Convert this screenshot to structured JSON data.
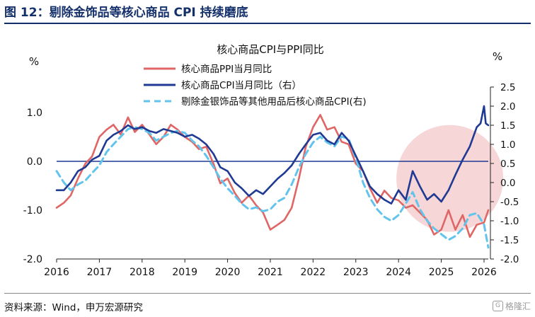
{
  "figure_title": "图 12：剔除金饰品等核心商品 CPI 持续磨底",
  "source_note": "资料来源：Wind，申万宏源研究",
  "watermark": "格隆汇",
  "colors": {
    "ppi": "#e06666",
    "cpi": "#1f3a93",
    "cpi_ex_gold": "#62c4ec",
    "highlight": "#f3c8c8",
    "title": "#14306b"
  },
  "chart_data": {
    "type": "line",
    "title": "核心商品CPI与PPI同比",
    "left_axis": {
      "unit_label": "%",
      "range": [
        -2.0,
        1.6
      ],
      "ticks": [
        "1.0",
        "0.0",
        "-1.0",
        "-2.0"
      ],
      "tick_values": [
        1.0,
        0.0,
        -1.0,
        -2.0
      ]
    },
    "right_axis": {
      "unit_label": "%",
      "range": [
        -2.0,
        2.5
      ],
      "ticks": [
        "2.5",
        "2.0",
        "1.5",
        "1.0",
        "0.5",
        "0.0",
        "-0.5",
        "-1.0",
        "-1.5",
        "-2.0"
      ],
      "tick_values": [
        2.5,
        2.0,
        1.5,
        1.0,
        0.5,
        0.0,
        -0.5,
        -1.0,
        -1.5,
        -2.0
      ]
    },
    "x_range": [
      2016.0,
      2026.1
    ],
    "x_ticks": [
      "2016",
      "2017",
      "2018",
      "2019",
      "2020",
      "2021",
      "2022",
      "2023",
      "2024",
      "2025",
      "2026"
    ],
    "x_tick_values": [
      2016,
      2017,
      2018,
      2019,
      2020,
      2021,
      2022,
      2023,
      2024,
      2025,
      2026
    ],
    "highlight": {
      "shape": "circle",
      "center": [
        2025.2,
        -0.35
      ],
      "radius_years": 1.25,
      "note": "shaded area over 2024-2026"
    },
    "series": [
      {
        "name": "核心商品PPI当月同比",
        "axis": "left",
        "style": "solid",
        "points": [
          [
            2016.0,
            -0.95
          ],
          [
            2016.17,
            -0.85
          ],
          [
            2016.33,
            -0.7
          ],
          [
            2016.5,
            -0.35
          ],
          [
            2016.67,
            -0.05
          ],
          [
            2016.83,
            0.1
          ],
          [
            2017.0,
            0.5
          ],
          [
            2017.17,
            0.65
          ],
          [
            2017.33,
            0.75
          ],
          [
            2017.5,
            0.55
          ],
          [
            2017.67,
            0.9
          ],
          [
            2017.83,
            0.6
          ],
          [
            2018.0,
            0.75
          ],
          [
            2018.17,
            0.55
          ],
          [
            2018.33,
            0.35
          ],
          [
            2018.5,
            0.5
          ],
          [
            2018.67,
            0.75
          ],
          [
            2018.83,
            0.65
          ],
          [
            2019.0,
            0.5
          ],
          [
            2019.17,
            0.4
          ],
          [
            2019.33,
            0.25
          ],
          [
            2019.5,
            0.3
          ],
          [
            2019.67,
            -0.05
          ],
          [
            2019.83,
            -0.45
          ],
          [
            2020.0,
            -0.35
          ],
          [
            2020.17,
            -0.65
          ],
          [
            2020.33,
            -0.85
          ],
          [
            2020.5,
            -0.7
          ],
          [
            2020.67,
            -0.9
          ],
          [
            2020.83,
            -1.05
          ],
          [
            2021.0,
            -1.4
          ],
          [
            2021.17,
            -1.3
          ],
          [
            2021.33,
            -1.2
          ],
          [
            2021.5,
            -0.95
          ],
          [
            2021.67,
            -0.35
          ],
          [
            2021.83,
            0.3
          ],
          [
            2022.0,
            0.7
          ],
          [
            2022.17,
            0.95
          ],
          [
            2022.33,
            0.65
          ],
          [
            2022.5,
            0.7
          ],
          [
            2022.67,
            0.4
          ],
          [
            2022.83,
            0.35
          ],
          [
            2023.0,
            -0.05
          ],
          [
            2023.17,
            -0.2
          ],
          [
            2023.33,
            -0.55
          ],
          [
            2023.5,
            -0.85
          ],
          [
            2023.67,
            -0.6
          ],
          [
            2023.83,
            -0.75
          ],
          [
            2024.0,
            -0.8
          ],
          [
            2024.17,
            -0.95
          ],
          [
            2024.33,
            -0.9
          ],
          [
            2024.5,
            -1.05
          ],
          [
            2024.67,
            -1.2
          ],
          [
            2024.83,
            -1.5
          ],
          [
            2025.0,
            -1.4
          ],
          [
            2025.17,
            -1.0
          ],
          [
            2025.33,
            -1.4
          ],
          [
            2025.5,
            -1.1
          ],
          [
            2025.67,
            -1.55
          ],
          [
            2025.83,
            -1.3
          ],
          [
            2026.0,
            -1.25
          ],
          [
            2026.1,
            -1.0
          ]
        ]
      },
      {
        "name": "核心商品CPI当月同比（右）",
        "axis": "right",
        "style": "solid",
        "points": [
          [
            2016.0,
            -0.2
          ],
          [
            2016.17,
            -0.2
          ],
          [
            2016.33,
            0.0
          ],
          [
            2016.5,
            0.3
          ],
          [
            2016.67,
            0.4
          ],
          [
            2016.83,
            0.6
          ],
          [
            2017.0,
            0.7
          ],
          [
            2017.17,
            1.1
          ],
          [
            2017.33,
            1.25
          ],
          [
            2017.5,
            1.35
          ],
          [
            2017.67,
            1.5
          ],
          [
            2017.83,
            1.4
          ],
          [
            2018.0,
            1.45
          ],
          [
            2018.17,
            1.35
          ],
          [
            2018.33,
            1.3
          ],
          [
            2018.5,
            1.4
          ],
          [
            2018.67,
            1.35
          ],
          [
            2018.83,
            1.3
          ],
          [
            2019.0,
            1.2
          ],
          [
            2019.17,
            1.25
          ],
          [
            2019.33,
            1.15
          ],
          [
            2019.5,
            1.0
          ],
          [
            2019.67,
            0.75
          ],
          [
            2019.83,
            0.4
          ],
          [
            2020.0,
            0.3
          ],
          [
            2020.17,
            0.0
          ],
          [
            2020.33,
            -0.15
          ],
          [
            2020.5,
            -0.35
          ],
          [
            2020.67,
            -0.2
          ],
          [
            2020.83,
            -0.3
          ],
          [
            2021.0,
            -0.1
          ],
          [
            2021.17,
            0.1
          ],
          [
            2021.33,
            0.25
          ],
          [
            2021.5,
            0.45
          ],
          [
            2021.67,
            0.75
          ],
          [
            2021.83,
            1.0
          ],
          [
            2022.0,
            1.25
          ],
          [
            2022.17,
            1.3
          ],
          [
            2022.33,
            1.1
          ],
          [
            2022.5,
            1.0
          ],
          [
            2022.67,
            1.3
          ],
          [
            2022.83,
            1.1
          ],
          [
            2023.0,
            0.7
          ],
          [
            2023.17,
            0.3
          ],
          [
            2023.33,
            -0.1
          ],
          [
            2023.5,
            -0.3
          ],
          [
            2023.67,
            -0.45
          ],
          [
            2023.83,
            -0.55
          ],
          [
            2024.0,
            -0.2
          ],
          [
            2024.17,
            -0.45
          ],
          [
            2024.33,
            0.3
          ],
          [
            2024.5,
            -0.1
          ],
          [
            2024.67,
            -0.45
          ],
          [
            2024.83,
            -0.3
          ],
          [
            2025.0,
            -0.5
          ],
          [
            2025.17,
            -0.2
          ],
          [
            2025.33,
            0.2
          ],
          [
            2025.5,
            0.6
          ],
          [
            2025.67,
            0.95
          ],
          [
            2025.83,
            1.45
          ],
          [
            2025.92,
            1.55
          ],
          [
            2026.0,
            2.0
          ],
          [
            2026.04,
            1.55
          ],
          [
            2026.1,
            1.5
          ]
        ]
      },
      {
        "name": "剔除金银饰品等其他用品后核心商品CPI(右)",
        "axis": "right",
        "style": "dashed",
        "points": [
          [
            2016.0,
            0.3
          ],
          [
            2016.17,
            0.0
          ],
          [
            2016.33,
            -0.2
          ],
          [
            2016.5,
            -0.05
          ],
          [
            2016.67,
            0.05
          ],
          [
            2016.83,
            0.25
          ],
          [
            2017.0,
            0.45
          ],
          [
            2017.17,
            0.8
          ],
          [
            2017.33,
            1.0
          ],
          [
            2017.5,
            1.2
          ],
          [
            2017.67,
            1.4
          ],
          [
            2017.83,
            1.45
          ],
          [
            2018.0,
            1.4
          ],
          [
            2018.17,
            1.3
          ],
          [
            2018.33,
            1.1
          ],
          [
            2018.5,
            1.2
          ],
          [
            2018.67,
            1.3
          ],
          [
            2018.83,
            1.35
          ],
          [
            2019.0,
            1.3
          ],
          [
            2019.17,
            1.1
          ],
          [
            2019.33,
            0.95
          ],
          [
            2019.5,
            0.7
          ],
          [
            2019.67,
            0.4
          ],
          [
            2019.83,
            0.1
          ],
          [
            2020.0,
            -0.15
          ],
          [
            2020.17,
            -0.35
          ],
          [
            2020.33,
            -0.55
          ],
          [
            2020.5,
            -0.7
          ],
          [
            2020.67,
            -0.65
          ],
          [
            2020.83,
            -0.75
          ],
          [
            2021.0,
            -0.7
          ],
          [
            2021.17,
            -0.5
          ],
          [
            2021.33,
            -0.4
          ],
          [
            2021.5,
            -0.05
          ],
          [
            2021.67,
            0.4
          ],
          [
            2021.83,
            0.75
          ],
          [
            2022.0,
            1.05
          ],
          [
            2022.17,
            1.2
          ],
          [
            2022.33,
            1.05
          ],
          [
            2022.5,
            0.95
          ],
          [
            2022.67,
            1.2
          ],
          [
            2022.83,
            1.15
          ],
          [
            2023.0,
            0.65
          ],
          [
            2023.17,
            0.0
          ],
          [
            2023.33,
            -0.4
          ],
          [
            2023.5,
            -0.7
          ],
          [
            2023.67,
            -0.9
          ],
          [
            2023.83,
            -1.0
          ],
          [
            2024.0,
            -0.85
          ],
          [
            2024.17,
            -0.55
          ],
          [
            2024.33,
            -0.25
          ],
          [
            2024.5,
            -0.7
          ],
          [
            2024.67,
            -1.0
          ],
          [
            2024.83,
            -1.2
          ],
          [
            2025.0,
            -1.35
          ],
          [
            2025.17,
            -1.5
          ],
          [
            2025.33,
            -1.4
          ],
          [
            2025.5,
            -1.2
          ],
          [
            2025.67,
            -0.85
          ],
          [
            2025.83,
            -0.8
          ],
          [
            2026.0,
            -1.1
          ],
          [
            2026.1,
            -1.7
          ]
        ]
      }
    ],
    "legend_placement": "top-center"
  }
}
